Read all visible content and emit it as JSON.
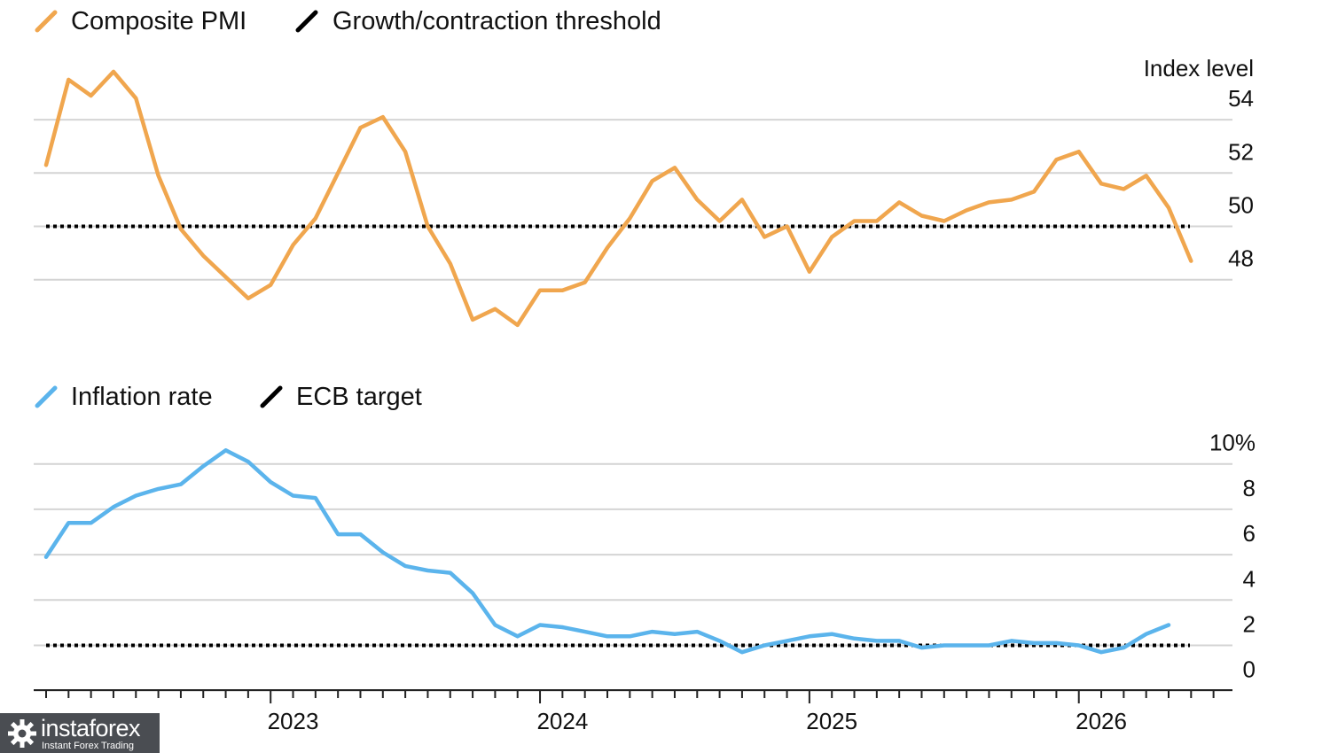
{
  "chart_data": [
    {
      "type": "line",
      "title": "",
      "ylabel": "Index level",
      "ylim": [
        46,
        55.5
      ],
      "yticks": [
        {
          "value": 54,
          "label": "54"
        },
        {
          "value": 52,
          "label": "52"
        },
        {
          "value": 50,
          "label": "50"
        },
        {
          "value": 48,
          "label": "48"
        }
      ],
      "grid": true,
      "legend": [
        {
          "name": "Composite PMI",
          "color": "#F0A64E",
          "kind": "line"
        },
        {
          "name": "Growth/contraction threshold",
          "color": "#000000",
          "kind": "dotted"
        }
      ],
      "reference_line": {
        "name": "Growth/contraction threshold",
        "value": 50
      },
      "series": [
        {
          "name": "Composite PMI",
          "color": "#F0A64E",
          "start": "2022-02",
          "values": [
            52.3,
            55.5,
            54.9,
            55.8,
            54.8,
            51.9,
            49.9,
            48.9,
            48.1,
            47.3,
            47.8,
            49.3,
            50.3,
            52.0,
            53.7,
            54.1,
            52.8,
            50.0,
            48.6,
            46.5,
            46.9,
            46.3,
            47.6,
            47.6,
            47.9,
            49.2,
            50.3,
            51.7,
            52.2,
            51.0,
            50.2,
            51.0,
            49.6,
            50.0,
            48.3,
            49.6,
            50.2,
            50.2,
            50.9,
            50.4,
            50.2,
            50.6,
            50.9,
            51.0,
            51.3,
            52.5,
            52.8,
            51.6,
            51.4,
            51.9,
            50.7,
            48.7
          ]
        }
      ]
    },
    {
      "type": "line",
      "title": "",
      "ylabel": "",
      "ylim": [
        -1,
        10
      ],
      "yticks": [
        {
          "value": 10,
          "label": "10%"
        },
        {
          "value": 8,
          "label": "8"
        },
        {
          "value": 6,
          "label": "6"
        },
        {
          "value": 4,
          "label": "4"
        },
        {
          "value": 2,
          "label": "2"
        },
        {
          "value": 0,
          "label": "0"
        }
      ],
      "grid": true,
      "legend": [
        {
          "name": "Inflation rate",
          "color": "#5BB4EC",
          "kind": "line"
        },
        {
          "name": "ECB target",
          "color": "#000000",
          "kind": "dotted"
        }
      ],
      "reference_line": {
        "name": "ECB target",
        "value": 2
      },
      "series": [
        {
          "name": "Inflation rate",
          "color": "#5BB4EC",
          "start": "2022-02",
          "values": [
            5.9,
            7.4,
            7.4,
            8.1,
            8.6,
            8.9,
            9.1,
            9.9,
            10.6,
            10.1,
            9.2,
            8.6,
            8.5,
            6.9,
            6.9,
            6.1,
            5.5,
            5.3,
            5.2,
            4.3,
            2.9,
            2.4,
            2.9,
            2.8,
            2.6,
            2.4,
            2.4,
            2.6,
            2.5,
            2.6,
            2.2,
            1.7,
            2.0,
            2.2,
            2.4,
            2.5,
            2.3,
            2.2,
            2.2,
            1.9,
            2.0,
            2.0,
            2.0,
            2.2,
            2.1,
            2.1,
            2.0,
            1.7,
            1.9,
            2.5,
            2.9
          ]
        }
      ],
      "x_axis": {
        "labels": [
          "2023",
          "2024",
          "2025",
          "2026"
        ]
      }
    }
  ],
  "watermark": {
    "brand": "instaforex",
    "tagline": "Instant Forex Trading"
  }
}
